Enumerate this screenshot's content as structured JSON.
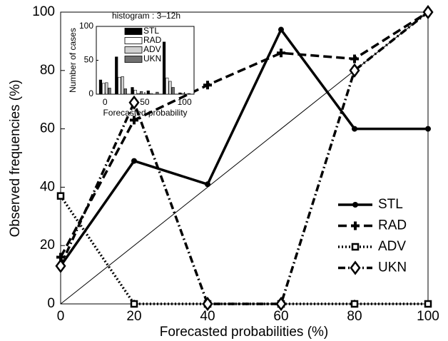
{
  "chart_data": [
    {
      "type": "line",
      "xlabel": "Forecasted probabilities (%)",
      "ylabel": "Observed frequencies (%)",
      "x": [
        0,
        20,
        40,
        60,
        80,
        100
      ],
      "xlim": [
        0,
        100
      ],
      "xticks": [
        0,
        20,
        40,
        60,
        80,
        100
      ],
      "ylim": [
        0,
        100
      ],
      "yticks": [
        0,
        20,
        40,
        60,
        80,
        100
      ],
      "legend": "lower right",
      "series": [
        {
          "name": "STL",
          "color": "#000000",
          "line_style": "solid",
          "marker": "dot",
          "values": [
            13,
            49,
            41,
            94,
            60,
            60
          ]
        },
        {
          "name": "RAD",
          "color": "#000000",
          "line_style": "dashed",
          "marker": "plus",
          "values": [
            16,
            63,
            75,
            86,
            84,
            100
          ]
        },
        {
          "name": "ADV",
          "color": "#000000",
          "line_style": "dotted",
          "marker": "square",
          "values": [
            37,
            0,
            0,
            0,
            0,
            0
          ]
        },
        {
          "name": "UKN",
          "color": "#000000",
          "line_style": "dashdot",
          "marker": "diamond",
          "values": [
            13,
            69,
            0,
            0,
            80,
            100
          ]
        }
      ]
    },
    {
      "type": "bar",
      "title": "histogram : 3–12h",
      "xlabel": "Forecasted probability",
      "ylabel": "Number of cases",
      "x": [
        0,
        20,
        40,
        60,
        80,
        100
      ],
      "xlim": [
        -11,
        112
      ],
      "xticks": [
        0,
        50,
        100
      ],
      "ylim": [
        0,
        100
      ],
      "yticks": [
        0,
        50,
        100
      ],
      "legend": "upper right",
      "series": [
        {
          "name": "STL",
          "color": "#000000",
          "values": [
            21,
            55,
            10,
            5,
            77,
            2
          ]
        },
        {
          "name": "RAD",
          "color": "#ffffff",
          "values": [
            16,
            25,
            6,
            1,
            24,
            1
          ]
        },
        {
          "name": "ADV",
          "color": "#d0d0d0",
          "values": [
            17,
            26,
            1,
            0,
            19,
            0
          ]
        },
        {
          "name": "UKN",
          "color": "#707070",
          "values": [
            9,
            8,
            4,
            3,
            10,
            1
          ]
        }
      ]
    }
  ]
}
